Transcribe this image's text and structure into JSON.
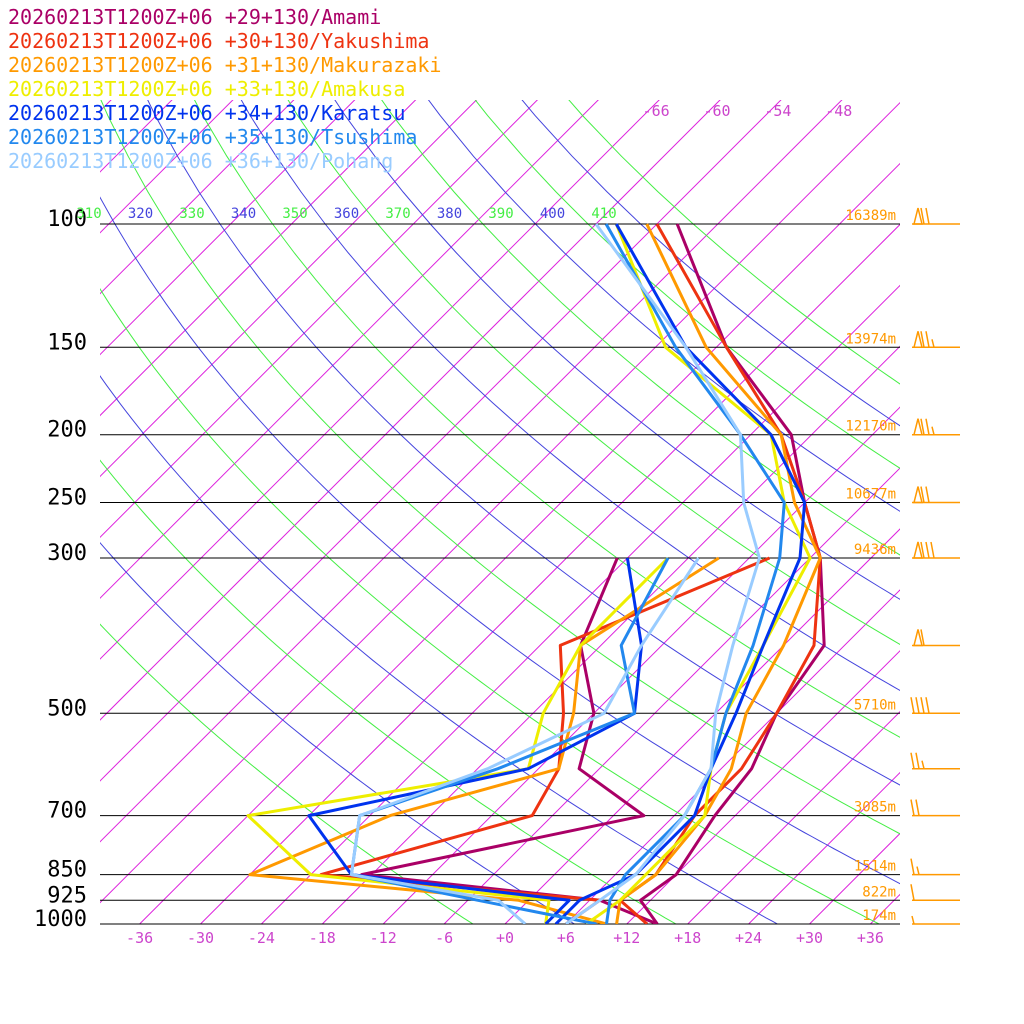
{
  "chart_data": {
    "type": "line",
    "chart_kind": "skew-T log-P sounding",
    "title": "",
    "xlabel": "",
    "ylabel": "",
    "x_ticks": [
      "-36",
      "-30",
      "-24",
      "-18",
      "-12",
      "-6",
      "+0",
      "+6",
      "+12",
      "+18",
      "+24",
      "+30",
      "+36"
    ],
    "x_tick_values": [
      -36,
      -30,
      -24,
      -18,
      -12,
      -6,
      0,
      6,
      12,
      18,
      24,
      30,
      36
    ],
    "pressure_levels": [
      {
        "label": "100",
        "p": 100,
        "height": "16389m"
      },
      {
        "label": "150",
        "p": 150,
        "height": "13974m"
      },
      {
        "label": "200",
        "p": 200,
        "height": "12170m"
      },
      {
        "label": "250",
        "p": 250,
        "height": "10677m"
      },
      {
        "label": "300",
        "p": 300,
        "height": "9436m"
      },
      {
        "label": "500",
        "p": 500,
        "height": "5710m"
      },
      {
        "label": "700",
        "p": 700,
        "height": "3085m"
      },
      {
        "label": "850",
        "p": 850,
        "height": "1514m"
      },
      {
        "label": "925",
        "p": 925,
        "height": "822m"
      },
      {
        "label": "1000",
        "p": 1000,
        "height": "174m"
      }
    ],
    "upper_temperature_labels": [
      "-66",
      "-60",
      "-54",
      "-48"
    ],
    "upper_temperature_values": [
      -66,
      -60,
      -54,
      -48
    ],
    "theta_labels": [
      {
        "text": "310",
        "value": 310,
        "color": "#44ee44"
      },
      {
        "text": "320",
        "value": 320,
        "color": "#4444dd"
      },
      {
        "text": "330",
        "value": 330,
        "color": "#44ee44"
      },
      {
        "text": "340",
        "value": 340,
        "color": "#4444dd"
      },
      {
        "text": "350",
        "value": 350,
        "color": "#44ee44"
      },
      {
        "text": "360",
        "value": 360,
        "color": "#4444dd"
      },
      {
        "text": "370",
        "value": 370,
        "color": "#44ee44"
      },
      {
        "text": "380",
        "value": 380,
        "color": "#4444dd"
      },
      {
        "text": "390",
        "value": 390,
        "color": "#44ee44"
      },
      {
        "text": "400",
        "value": 400,
        "color": "#4444dd"
      },
      {
        "text": "410",
        "value": 410,
        "color": "#44ee44"
      }
    ],
    "series": [
      {
        "name": "20260213T1200Z+06 +29+130/Amami",
        "color": "#aa0066",
        "temperature": [
          [
            1000,
            15
          ],
          [
            925,
            11
          ],
          [
            850,
            12
          ],
          [
            700,
            10
          ],
          [
            600,
            9
          ],
          [
            500,
            6
          ],
          [
            400,
            4
          ],
          [
            300,
            -5
          ],
          [
            250,
            -12
          ],
          [
            200,
            -20
          ],
          [
            150,
            -35
          ],
          [
            100,
            -52
          ]
        ],
        "dewpoint": [
          [
            1000,
            15
          ],
          [
            925,
            7
          ],
          [
            850,
            -19
          ],
          [
            700,
            3
          ],
          [
            600,
            -8
          ],
          [
            500,
            -12
          ],
          [
            400,
            -20
          ],
          [
            300,
            -25
          ]
        ]
      },
      {
        "name": "20260213T1200Z+06 +30+130/Yakushima",
        "color": "#ee3311",
        "temperature": [
          [
            1000,
            14
          ],
          [
            925,
            9
          ],
          [
            850,
            10
          ],
          [
            700,
            8
          ],
          [
            600,
            8
          ],
          [
            500,
            6
          ],
          [
            400,
            3
          ],
          [
            300,
            -5
          ],
          [
            250,
            -12
          ],
          [
            200,
            -21
          ],
          [
            150,
            -35
          ],
          [
            100,
            -54
          ]
        ],
        "dewpoint": [
          [
            1000,
            6
          ],
          [
            925,
            7
          ],
          [
            850,
            -23
          ],
          [
            700,
            -8
          ],
          [
            600,
            -10
          ],
          [
            500,
            -15
          ],
          [
            400,
            -22
          ],
          [
            300,
            -10
          ]
        ]
      },
      {
        "name": "20260213T1200Z+06 +31+130/Makurazaki",
        "color": "#ff9900",
        "temperature": [
          [
            1000,
            11
          ],
          [
            925,
            9
          ],
          [
            850,
            10
          ],
          [
            700,
            9
          ],
          [
            600,
            7
          ],
          [
            500,
            3
          ],
          [
            400,
            0
          ],
          [
            300,
            -5
          ],
          [
            250,
            -13
          ],
          [
            200,
            -21
          ],
          [
            150,
            -37
          ],
          [
            100,
            -55
          ]
        ],
        "dewpoint": [
          [
            1000,
            10
          ],
          [
            925,
            -1
          ],
          [
            850,
            -30
          ],
          [
            700,
            -22
          ],
          [
            600,
            -10
          ],
          [
            500,
            -14
          ],
          [
            400,
            -20
          ],
          [
            300,
            -15
          ]
        ]
      },
      {
        "name": "20260213T1200Z+06 +33+130/Amakusa",
        "color": "#eeee00",
        "temperature": [
          [
            1000,
            8
          ],
          [
            925,
            9
          ],
          [
            850,
            9
          ],
          [
            700,
            9
          ],
          [
            600,
            5
          ],
          [
            500,
            1
          ],
          [
            400,
            -2
          ],
          [
            300,
            -6
          ],
          [
            250,
            -14
          ],
          [
            200,
            -22
          ],
          [
            150,
            -41
          ],
          [
            100,
            -58
          ]
        ],
        "dewpoint": [
          [
            1000,
            4
          ],
          [
            925,
            2
          ],
          [
            850,
            -24
          ],
          [
            700,
            -36
          ],
          [
            600,
            -13
          ],
          [
            500,
            -17
          ],
          [
            400,
            -20
          ],
          [
            300,
            -20
          ]
        ]
      },
      {
        "name": "20260213T1200Z+06 +34+130/Karatsu",
        "color": "#0033ee",
        "temperature": [
          [
            1000,
            5
          ],
          [
            925,
            5
          ],
          [
            850,
            8
          ],
          [
            700,
            8
          ],
          [
            600,
            5
          ],
          [
            500,
            2
          ],
          [
            400,
            -2
          ],
          [
            300,
            -7
          ],
          [
            250,
            -12
          ],
          [
            200,
            -22
          ],
          [
            150,
            -39
          ],
          [
            100,
            -58
          ]
        ],
        "dewpoint": [
          [
            1000,
            4
          ],
          [
            925,
            4
          ],
          [
            850,
            -20
          ],
          [
            700,
            -30
          ],
          [
            600,
            -13
          ],
          [
            500,
            -8
          ],
          [
            400,
            -14
          ],
          [
            300,
            -24
          ]
        ]
      },
      {
        "name": "20260213T1200Z+06 +35+130/Tsushima",
        "color": "#2288ee",
        "temperature": [
          [
            1000,
            10
          ],
          [
            925,
            8
          ],
          [
            850,
            7
          ],
          [
            700,
            7
          ],
          [
            600,
            5
          ],
          [
            500,
            1
          ],
          [
            400,
            -3
          ],
          [
            300,
            -9
          ],
          [
            250,
            -14
          ],
          [
            200,
            -25
          ],
          [
            150,
            -40
          ],
          [
            100,
            -59
          ]
        ],
        "dewpoint": [
          [
            1000,
            9
          ],
          [
            925,
            -5
          ],
          [
            850,
            -20
          ],
          [
            700,
            -25
          ],
          [
            600,
            -16
          ],
          [
            500,
            -8
          ],
          [
            400,
            -16
          ],
          [
            300,
            -20
          ]
        ]
      },
      {
        "name": "20260213T1200Z+06 +36+130/Pohang",
        "color": "#99ccff",
        "temperature": [
          [
            1000,
            6
          ],
          [
            925,
            7
          ],
          [
            850,
            8
          ],
          [
            700,
            7
          ],
          [
            600,
            5
          ],
          [
            500,
            0
          ],
          [
            400,
            -5
          ],
          [
            300,
            -11
          ],
          [
            250,
            -18
          ],
          [
            200,
            -25
          ],
          [
            150,
            -39
          ],
          [
            100,
            -60
          ]
        ],
        "dewpoint": [
          [
            1000,
            2
          ],
          [
            925,
            -3
          ],
          [
            850,
            -20
          ],
          [
            700,
            -25
          ],
          [
            600,
            -17
          ],
          [
            500,
            -11
          ],
          [
            400,
            -14
          ],
          [
            300,
            -17
          ]
        ]
      }
    ],
    "wind_barbs": [
      {
        "p": 100,
        "speed_kt": 70
      },
      {
        "p": 150,
        "speed_kt": 75
      },
      {
        "p": 200,
        "speed_kt": 75
      },
      {
        "p": 250,
        "speed_kt": 70
      },
      {
        "p": 300,
        "speed_kt": 80
      },
      {
        "p": 400,
        "speed_kt": 60
      },
      {
        "p": 500,
        "speed_kt": 40
      },
      {
        "p": 600,
        "speed_kt": 25
      },
      {
        "p": 700,
        "speed_kt": 20
      },
      {
        "p": 850,
        "speed_kt": 15
      },
      {
        "p": 925,
        "speed_kt": 10
      },
      {
        "p": 1000,
        "speed_kt": 5
      }
    ],
    "colors": {
      "isotherm": "#dd22dd",
      "dry_adiabat_green": "#44ee44",
      "dry_adiabat_blue": "#4444dd",
      "isobar": "#000000",
      "height_label": "#ff9900",
      "barb": "#ff9900",
      "temp_tick": "#cc44cc"
    }
  }
}
